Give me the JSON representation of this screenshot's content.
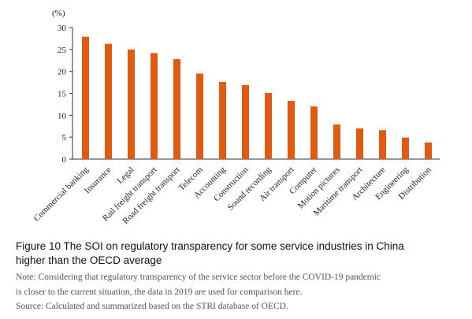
{
  "chart_data": {
    "type": "bar",
    "unit": "(%)",
    "categories": [
      "Commercial banking",
      "Insurance",
      "Legal",
      "Rail freight transport",
      "Road freight transport",
      "Telecom",
      "Accounting",
      "Construction",
      "Sound recording",
      "Air transport",
      "Computer",
      "Motion pictures",
      "Maritime transport",
      "Architecture",
      "Engineering",
      "Distribution"
    ],
    "values": [
      27.9,
      26.3,
      25.0,
      24.2,
      22.8,
      19.5,
      17.6,
      16.9,
      15.1,
      13.3,
      12.0,
      7.9,
      7.0,
      6.6,
      4.9,
      3.8
    ],
    "ylim": [
      0,
      30
    ],
    "yticks": [
      0,
      5,
      10,
      15,
      20,
      25,
      30
    ],
    "bar_color": "#e05a10",
    "grid": false,
    "legend": "none"
  },
  "caption": {
    "line1": "Figure 10 The SOI on regulatory transparency for some service industries in China",
    "line2": "higher than the OECD average"
  },
  "note": {
    "line1": "Note: Considering that regulatory transparency of the service sector before the COVID-19 pandemic",
    "line2": "is closer to the current situation, the data in 2019 are used for comparison here.",
    "line3": "Source: Calculated and summarized based on the STRI database of OECD."
  }
}
